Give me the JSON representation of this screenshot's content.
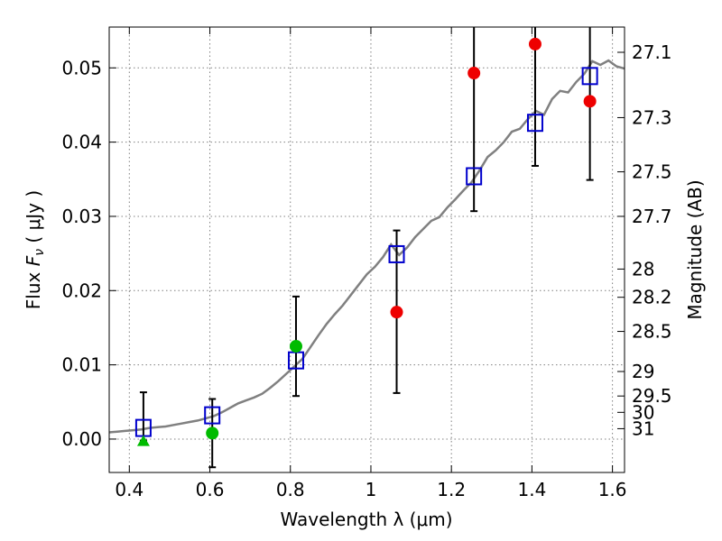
{
  "chart_data": {
    "type": "scatter",
    "xlabel": "Wavelength  λ (μm)",
    "ylabel": "Flux  F_ν  ( μJy )",
    "ylabel_parts": {
      "prefix": "Flux  ",
      "symbol": "F",
      "subscript": "ν",
      "suffix": "  ( μJy )"
    },
    "y2label": "Magnitude (AB)",
    "xlim": [
      0.35,
      1.63
    ],
    "ylim": [
      -0.0045,
      0.0555
    ],
    "xticks": [
      0.4,
      0.6,
      0.8,
      1.0,
      1.2,
      1.4,
      1.6
    ],
    "xtick_labels": [
      "0.4",
      "0.6",
      "0.8",
      "1",
      "1.2",
      "1.4",
      "1.6"
    ],
    "yticks": [
      0.0,
      0.01,
      0.02,
      0.03,
      0.04,
      0.05
    ],
    "ytick_labels": [
      "0.00",
      "0.01",
      "0.02",
      "0.03",
      "0.04",
      "0.05"
    ],
    "y2_ticks": [
      {
        "label": "27.1",
        "flux": 0.0521
      },
      {
        "label": "27.3",
        "flux": 0.0433
      },
      {
        "label": "27.5",
        "flux": 0.036
      },
      {
        "label": "27.7",
        "flux": 0.03
      },
      {
        "label": "28",
        "flux": 0.0229
      },
      {
        "label": "28.2",
        "flux": 0.0191
      },
      {
        "label": "28.5",
        "flux": 0.0145
      },
      {
        "label": "29",
        "flux": 0.0091
      },
      {
        "label": "29.5",
        "flux": 0.0058
      },
      {
        "label": "30",
        "flux": 0.0036
      },
      {
        "label": "31",
        "flux": 0.0014
      }
    ],
    "grid": true,
    "colors": {
      "spectrum": "#808080",
      "model": "#0000cc",
      "detected_red": "#ee0000",
      "green": "#00bb00",
      "errorbar": "#000000"
    },
    "model_photometry": [
      {
        "x": 0.435,
        "y": 0.0015
      },
      {
        "x": 0.606,
        "y": 0.0032
      },
      {
        "x": 0.814,
        "y": 0.0106
      },
      {
        "x": 1.064,
        "y": 0.0249
      },
      {
        "x": 1.256,
        "y": 0.0354
      },
      {
        "x": 1.408,
        "y": 0.0426
      },
      {
        "x": 1.544,
        "y": 0.0489
      }
    ],
    "green_circles": [
      {
        "x": 0.606,
        "y": 0.0008,
        "yerr_low": -0.0038,
        "yerr_high": 0.0054
      },
      {
        "x": 0.814,
        "y": 0.0125,
        "yerr_low": 0.0058,
        "yerr_high": 0.0192
      }
    ],
    "green_triangles": [
      {
        "x": 0.435,
        "y": -0.0002,
        "yerr_low": -0.0002,
        "yerr_high": 0.0063
      }
    ],
    "red_circles": [
      {
        "x": 1.064,
        "y": 0.0171,
        "yerr_low": 0.0062,
        "yerr_high": 0.0281
      },
      {
        "x": 1.256,
        "y": 0.0493,
        "yerr_low": 0.0307,
        "yerr_high": 0.0555
      },
      {
        "x": 1.408,
        "y": 0.0532,
        "yerr_low": 0.0368,
        "yerr_high": 0.0555
      },
      {
        "x": 1.544,
        "y": 0.0455,
        "yerr_low": 0.0349,
        "yerr_high": 0.0555
      }
    ],
    "spectrum": {
      "x": [
        0.35,
        0.37,
        0.39,
        0.41,
        0.43,
        0.45,
        0.47,
        0.49,
        0.51,
        0.53,
        0.55,
        0.57,
        0.59,
        0.61,
        0.63,
        0.65,
        0.67,
        0.69,
        0.71,
        0.73,
        0.75,
        0.77,
        0.79,
        0.81,
        0.83,
        0.85,
        0.87,
        0.89,
        0.91,
        0.93,
        0.95,
        0.97,
        0.99,
        1.01,
        1.03,
        1.05,
        1.07,
        1.09,
        1.11,
        1.13,
        1.15,
        1.17,
        1.19,
        1.21,
        1.23,
        1.25,
        1.27,
        1.29,
        1.31,
        1.33,
        1.35,
        1.37,
        1.39,
        1.41,
        1.43,
        1.45,
        1.47,
        1.49,
        1.51,
        1.53,
        1.55,
        1.57,
        1.59,
        1.61,
        1.63
      ],
      "y": [
        0.0009,
        0.001,
        0.0011,
        0.0012,
        0.0013,
        0.0015,
        0.0016,
        0.0017,
        0.0019,
        0.0021,
        0.0023,
        0.0025,
        0.0028,
        0.0031,
        0.0036,
        0.0042,
        0.0048,
        0.0052,
        0.0056,
        0.0061,
        0.0069,
        0.0078,
        0.0088,
        0.0098,
        0.0108,
        0.0124,
        0.014,
        0.0155,
        0.0168,
        0.018,
        0.0194,
        0.0208,
        0.0222,
        0.0232,
        0.0245,
        0.0262,
        0.0248,
        0.0258,
        0.0272,
        0.0283,
        0.0294,
        0.0299,
        0.0312,
        0.0323,
        0.0335,
        0.0346,
        0.0362,
        0.038,
        0.0389,
        0.04,
        0.0414,
        0.0418,
        0.0431,
        0.0442,
        0.0437,
        0.0458,
        0.0469,
        0.0467,
        0.0481,
        0.0492,
        0.0509,
        0.0504,
        0.051,
        0.0502,
        0.0499
      ]
    }
  }
}
